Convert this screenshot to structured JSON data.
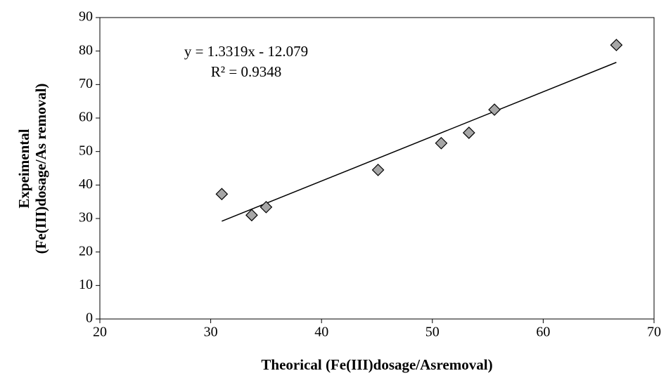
{
  "chart_data": {
    "type": "scatter",
    "xlabel": "Theorical (Fe(III)dosage/Asremoval)",
    "ylabel": [
      "Expeimental",
      "(Fe(III)dosage/As removal)"
    ],
    "x": [
      31.0,
      33.7,
      35.0,
      45.1,
      50.8,
      53.3,
      55.6,
      66.6
    ],
    "values": [
      37.3,
      31.0,
      33.4,
      44.5,
      52.5,
      55.6,
      62.5,
      81.8
    ],
    "color": "#a6a6a6",
    "xlim": [
      20,
      70
    ],
    "xticks": [
      20,
      30,
      40,
      50,
      60,
      70
    ],
    "ylim": [
      0,
      90
    ],
    "yticks": [
      0,
      10,
      20,
      30,
      40,
      50,
      60,
      70,
      80,
      90
    ],
    "trendline": {
      "slope": 1.3319,
      "intercept": -12.079,
      "label": "y = 1.3319x - 12.079",
      "r2_label": "R² = 0.9348"
    }
  }
}
